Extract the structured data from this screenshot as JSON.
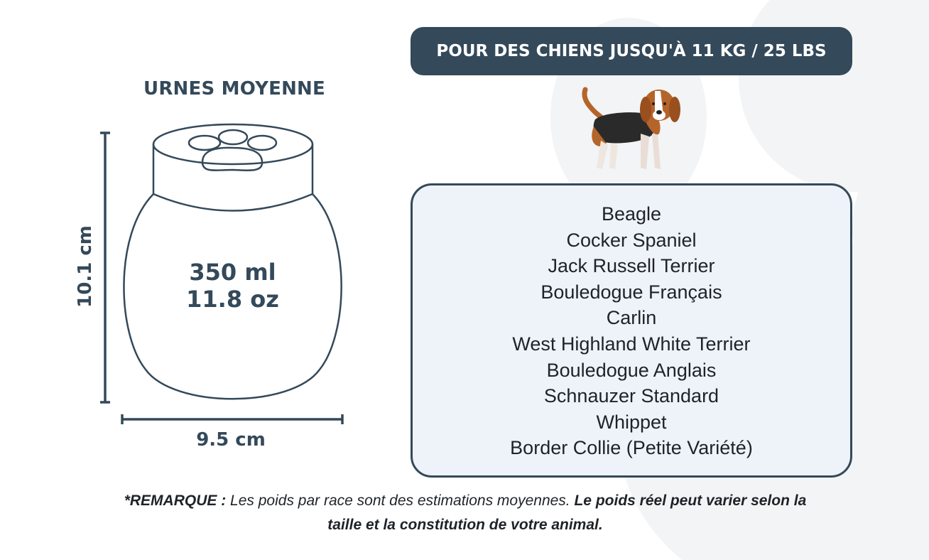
{
  "product_title": "URNES MOYENNE",
  "capacity": {
    "ml": "350 ml",
    "oz": "11.8 oz"
  },
  "dimensions": {
    "height": "10.1 cm",
    "width": "9.5 cm"
  },
  "weight_banner": "POUR DES CHIENS JUSQU'À 11 KG / 25 LBS",
  "breeds": [
    "Beagle",
    "Cocker Spaniel",
    "Jack Russell Terrier",
    "Bouledogue Français",
    "Carlin",
    "West Highland White Terrier",
    "Bouledogue Anglais",
    "Schnauzer Standard",
    "Whippet",
    "Border Collie (Petite Variété)"
  ],
  "note": {
    "label": "*REMARQUE :",
    "text": " Les poids par race sont des estimations moyennes. ",
    "emphasis": "Le poids réel peut varier selon la taille et la constitution de votre animal."
  },
  "colors": {
    "primary": "#34495a",
    "box_fill": "#eef3f9",
    "background_paw": "#f2f4f6"
  },
  "icons": {
    "urn": "paw-urn-illustration",
    "dog": "beagle-illustration",
    "background": "paw-print-watermark"
  }
}
